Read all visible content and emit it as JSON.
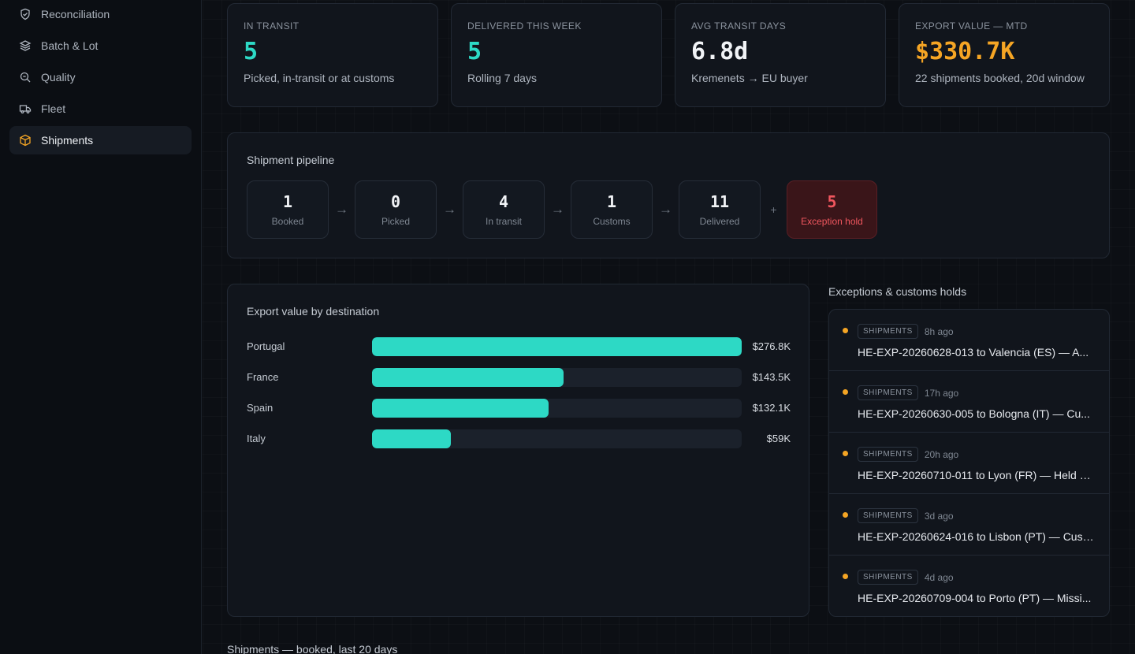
{
  "sidebar": {
    "items": [
      {
        "label": "Reconciliation",
        "icon": "shield-check-icon",
        "active": false
      },
      {
        "label": "Batch & Lot",
        "icon": "layers-icon",
        "active": false
      },
      {
        "label": "Quality",
        "icon": "search-magnify-icon",
        "active": false
      },
      {
        "label": "Fleet",
        "icon": "truck-icon",
        "active": false
      },
      {
        "label": "Shipments",
        "icon": "box-icon",
        "active": true
      }
    ],
    "accent": "#f5a524"
  },
  "kpis": [
    {
      "label": "IN TRANSIT",
      "value": "5",
      "sub": "Picked, in-transit or at customs",
      "color": "#2dd9c5"
    },
    {
      "label": "DELIVERED THIS WEEK",
      "value": "5",
      "sub": "Rolling 7 days",
      "color": "#2dd9c5"
    },
    {
      "label": "AVG TRANSIT DAYS",
      "value": "6.8d",
      "sub": "Kremenets → EU buyer",
      "color": "#f1f3f6"
    },
    {
      "label": "EXPORT VALUE — MTD",
      "value": "$330.7K",
      "sub": "22 shipments booked, 20d window",
      "color": "#f5a524"
    }
  ],
  "pipeline": {
    "title": "Shipment pipeline",
    "stages": [
      {
        "count": "1",
        "name": "Booked"
      },
      {
        "count": "0",
        "name": "Picked"
      },
      {
        "count": "4",
        "name": "In transit"
      },
      {
        "count": "1",
        "name": "Customs"
      },
      {
        "count": "11",
        "name": "Delivered"
      }
    ],
    "plus": "+",
    "exception": {
      "count": "5",
      "name": "Exception hold"
    }
  },
  "chart_data": {
    "type": "bar",
    "title": "Export value by destination",
    "orientation": "horizontal",
    "categories": [
      "Portugal",
      "France",
      "Spain",
      "Italy"
    ],
    "values": [
      276.8,
      143.5,
      132.1,
      59
    ],
    "value_labels": [
      "$276.8K",
      "$143.5K",
      "$132.1K",
      "$59K"
    ],
    "unit": "$K",
    "xlim": [
      0,
      276.8
    ],
    "bar_color": "#2dd9c5"
  },
  "exceptions": {
    "title": "Exceptions & customs holds",
    "items": [
      {
        "tag": "SHIPMENTS",
        "time": "8h ago",
        "text": "HE-EXP-20260628-013 to Valencia (ES) — A..."
      },
      {
        "tag": "SHIPMENTS",
        "time": "17h ago",
        "text": "HE-EXP-20260630-005 to Bologna (IT) — Cu..."
      },
      {
        "tag": "SHIPMENTS",
        "time": "20h ago",
        "text": "HE-EXP-20260710-011 to Lyon (FR) — Held at ..."
      },
      {
        "tag": "SHIPMENTS",
        "time": "3d ago",
        "text": "HE-EXP-20260624-016 to Lisbon (PT) — Cust..."
      },
      {
        "tag": "SHIPMENTS",
        "time": "4d ago",
        "text": "HE-EXP-20260709-004 to Porto (PT) — Missi..."
      }
    ]
  },
  "bottom_section": {
    "title": "Shipments — booked, last 20 days"
  }
}
